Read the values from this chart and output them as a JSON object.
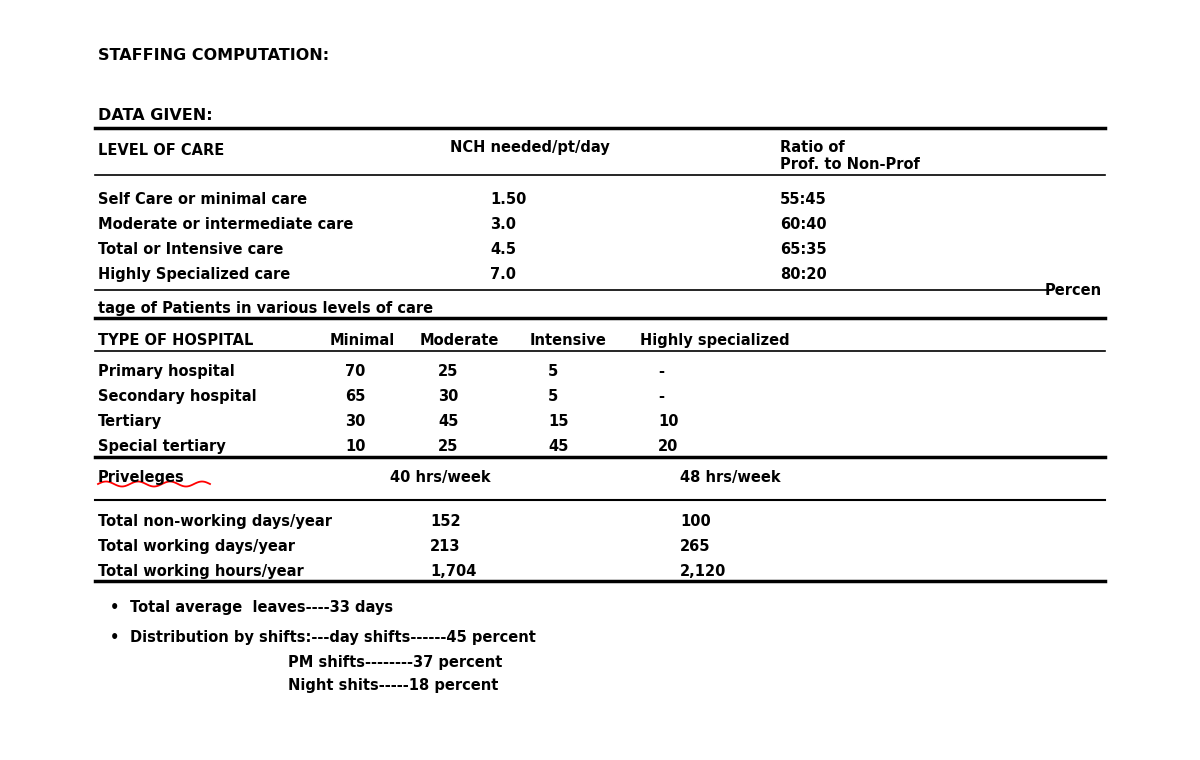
{
  "title": "STAFFING COMPUTATION:",
  "subtitle": "DATA GIVEN:",
  "bg_color": "#ffffff",
  "table1_rows": [
    [
      "Self Care or minimal care",
      "1.50",
      "55:45"
    ],
    [
      "Moderate or intermediate care",
      "3.0",
      "60:40"
    ],
    [
      "Total or Intensive care",
      "4.5",
      "65:35"
    ],
    [
      "Highly Specialized care",
      "7.0",
      "80:20"
    ]
  ],
  "percen_label": "Percen",
  "tage_label": "tage of Patients in various levels of care",
  "table2_rows": [
    [
      "Primary hospital",
      "70",
      "25",
      "5",
      "-"
    ],
    [
      "Secondary hospital",
      "65",
      "30",
      "5",
      "-"
    ],
    [
      "Tertiary",
      "30",
      "45",
      "15",
      "10"
    ],
    [
      "Special tertiary",
      "10",
      "25",
      "45",
      "20"
    ]
  ],
  "priveleges_label": "Priveleges",
  "hrs40": "40 hrs/week",
  "hrs48": "48 hrs/week",
  "table3_rows": [
    [
      "Total non-working days/year",
      "152",
      "100"
    ],
    [
      "Total working days/year",
      "213",
      "265"
    ],
    [
      "Total working hours/year",
      "1,704",
      "2,120"
    ]
  ],
  "bullet1": "Total average  leaves----33 days",
  "bullet2": "Distribution by shifts:---day shifts------45 percent",
  "bullet2b": "PM shifts--------37 percent",
  "bullet2c": "Night shits-----18 percent",
  "col_level": 0.082,
  "col_nch": 0.4,
  "col_ratio": 0.65,
  "col_minimal": 0.295,
  "col_moderate": 0.385,
  "col_intensive": 0.49,
  "col_highly": 0.585,
  "col_40hrs": 0.355,
  "col_48hrs": 0.615,
  "col_val1": 0.375,
  "col_val2": 0.625,
  "font_size_title": 11.5,
  "font_size_body": 10.5
}
